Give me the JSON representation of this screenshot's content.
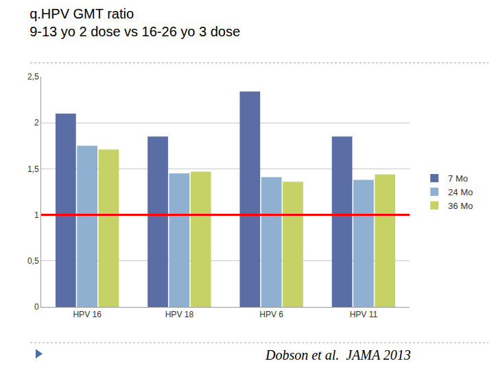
{
  "chart_data": {
    "type": "bar",
    "title": "q.HPV GMT ratio",
    "subtitle": "9-13 yo 2 dose vs 16-26 yo 3 dose",
    "categories": [
      "HPV 16",
      "HPV 18",
      "HPV 6",
      "HPV 11"
    ],
    "series": [
      {
        "name": "7 Mo",
        "color": "#5a6ea5",
        "values": [
          2.1,
          1.85,
          2.34,
          1.85
        ]
      },
      {
        "name": "24 Mo",
        "color": "#8fb0d0",
        "values": [
          1.75,
          1.45,
          1.41,
          1.38
        ]
      },
      {
        "name": "36 Mo",
        "color": "#c6d166",
        "values": [
          1.71,
          1.47,
          1.36,
          1.44
        ]
      }
    ],
    "ylim": [
      0,
      2.5
    ],
    "yticks": [
      0,
      {
        "value": 0.5,
        "label": "0,5"
      },
      1,
      {
        "value": 1.5,
        "label": "1,5"
      },
      2,
      {
        "value": 2.5,
        "label": "2,5"
      }
    ],
    "grid": true,
    "legend": "right",
    "reference_line": {
      "value": 1,
      "color": "#ff0000"
    },
    "annotations": [
      "Dobson et al.  JAMA 2013"
    ]
  }
}
